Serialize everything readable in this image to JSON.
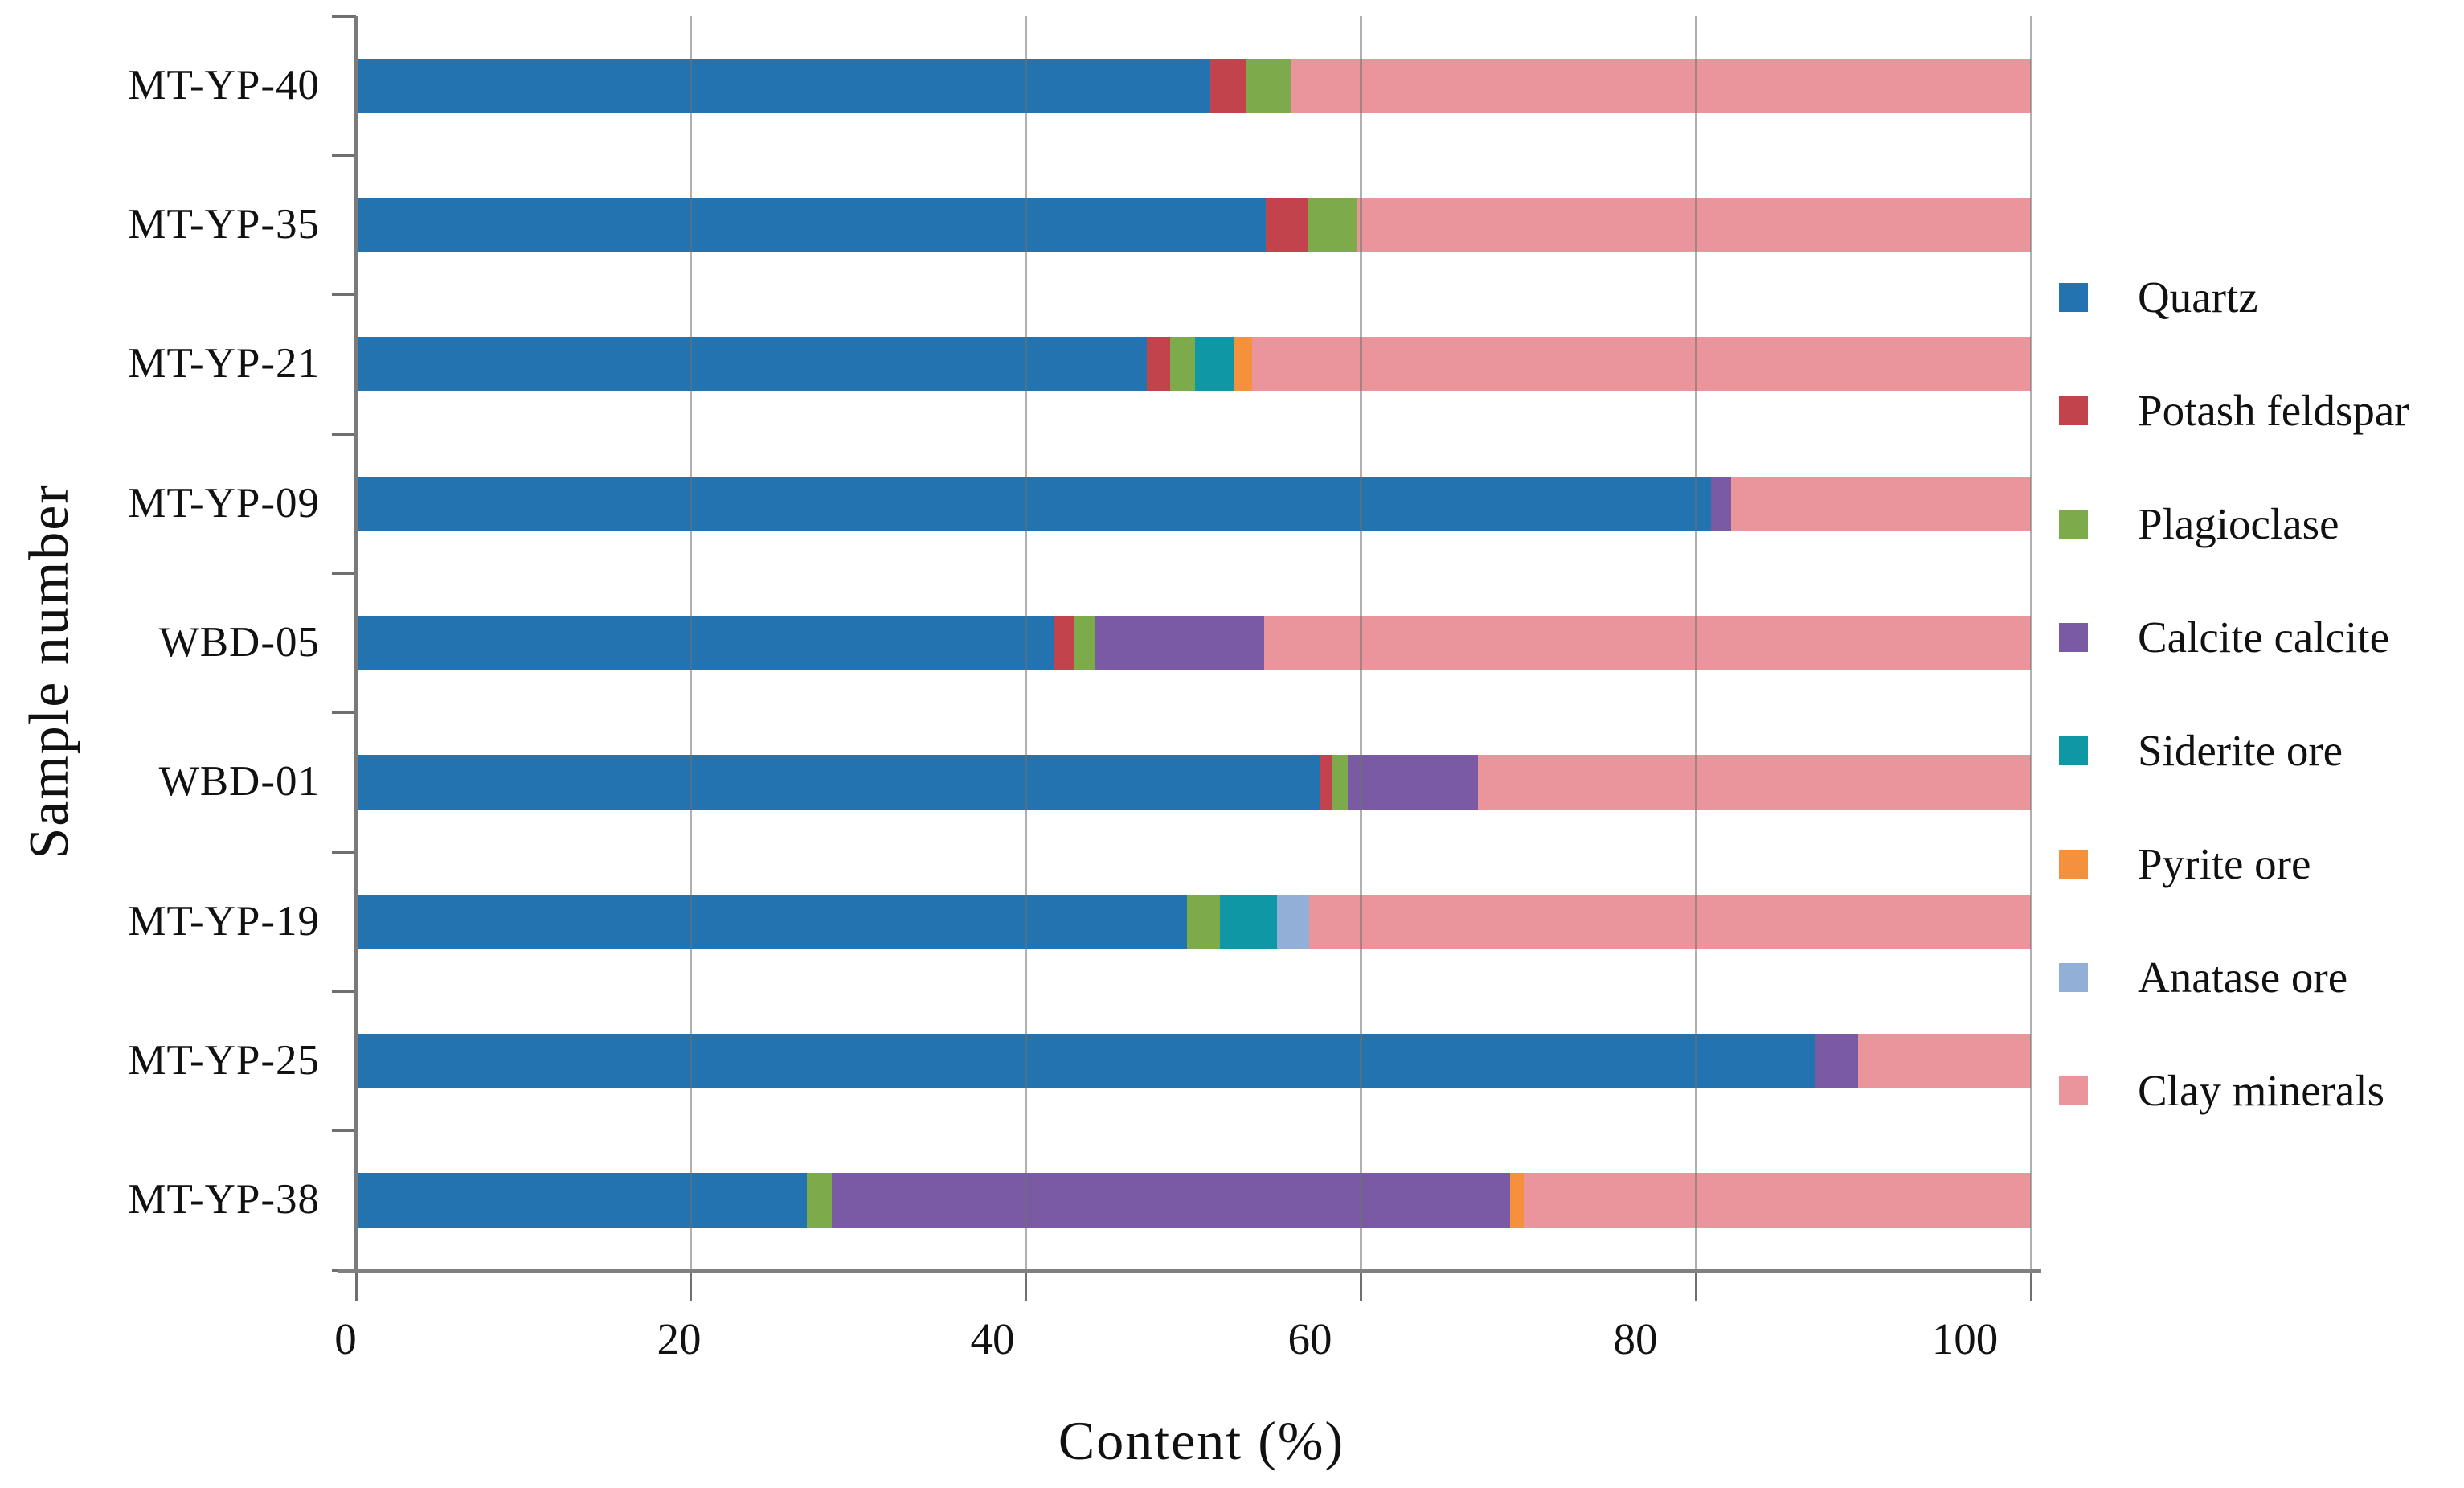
{
  "figure": {
    "xlabel": "Content  (%)",
    "ylabel": "Sample number"
  },
  "chart_data": {
    "type": "bar",
    "orientation": "horizontal",
    "stacked": true,
    "title": "",
    "xlabel": "Content (%)",
    "ylabel": "Sample number",
    "xlim": [
      0,
      100
    ],
    "x_ticks": [
      0,
      20,
      40,
      60,
      80,
      100
    ],
    "grid": true,
    "legend_position": "right",
    "categories_top_to_bottom": [
      "MT-YP-40",
      "MT-YP-35",
      "MT-YP-21",
      "MT-YP-09",
      "WBD-05",
      "WBD-01",
      "MT-YP-19",
      "MT-YP-25",
      "MT-YP-38"
    ],
    "units": "percent content, each sample sums to 100",
    "series": [
      {
        "name": "Quartz",
        "color": "#2373b1",
        "values": [
          51.0,
          54.3,
          47.2,
          80.9,
          41.7,
          57.6,
          49.6,
          87.1,
          26.9
        ]
      },
      {
        "name": "Potash feldspar",
        "color": "#c2434b",
        "values": [
          2.1,
          2.5,
          1.4,
          0,
          1.2,
          0.7,
          0,
          0,
          0
        ]
      },
      {
        "name": "Plagioclase",
        "color": "#7dab4b",
        "values": [
          2.7,
          3.0,
          1.5,
          0,
          1.2,
          0.9,
          2.0,
          0,
          1.5
        ]
      },
      {
        "name": "Calcite calcite",
        "color": "#7a5ba3",
        "values": [
          0,
          0,
          0,
          1.2,
          10.1,
          7.8,
          0,
          2.6,
          40.5
        ]
      },
      {
        "name": "Siderite ore",
        "color": "#0f97a5",
        "values": [
          0,
          0,
          2.3,
          0,
          0,
          0,
          3.4,
          0,
          0
        ]
      },
      {
        "name": "Pyrite ore",
        "color": "#f5913d",
        "values": [
          0,
          0,
          1.1,
          0,
          0,
          0,
          0,
          0,
          0.8
        ]
      },
      {
        "name": "Anatase ore",
        "color": "#92afd8",
        "values": [
          0,
          0,
          0,
          0,
          0,
          0,
          1.9,
          0,
          0
        ]
      },
      {
        "name": "Clay minerals",
        "color": "#ea949b",
        "values": [
          44.2,
          40.2,
          46.5,
          17.9,
          45.8,
          33.0,
          43.1,
          10.3,
          30.3
        ]
      }
    ]
  }
}
